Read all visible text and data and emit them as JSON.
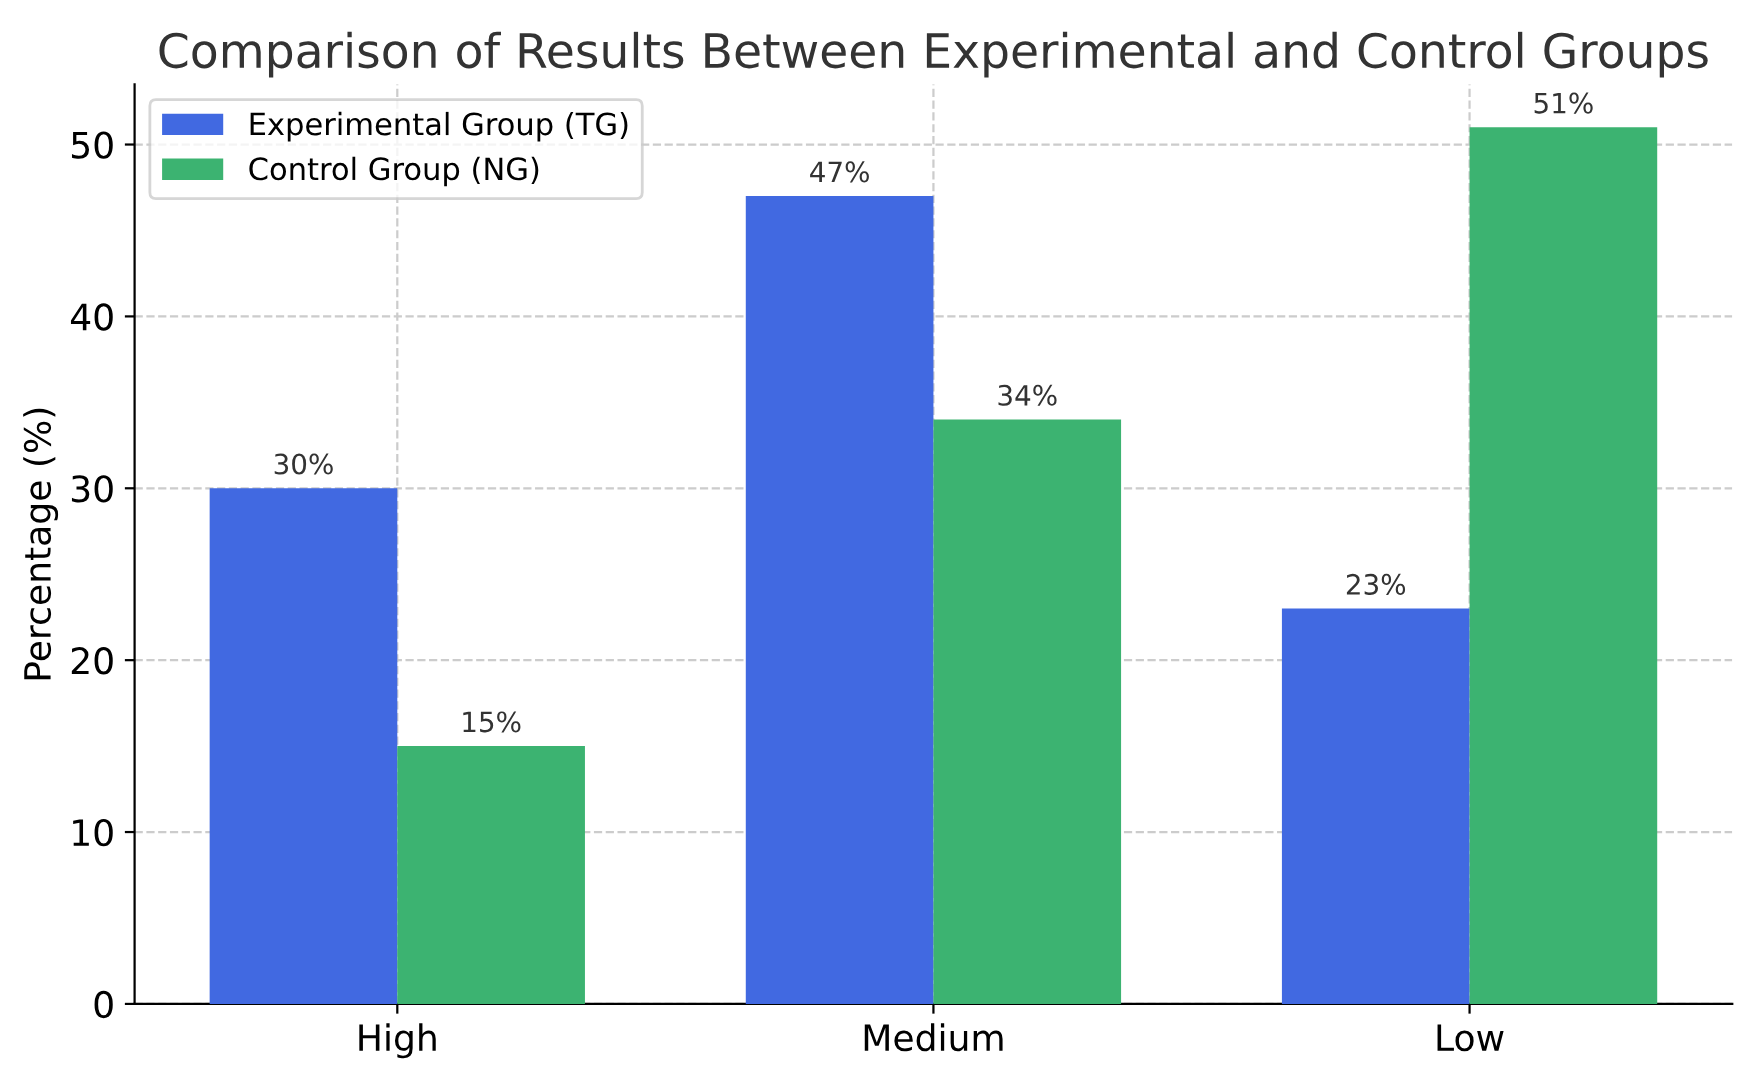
{
  "chart_data": {
    "type": "bar",
    "title": "Comparison of Results Between Experimental and Control Groups",
    "ylabel": "Percentage (%)",
    "categories": [
      "High",
      "Medium",
      "Low"
    ],
    "series": [
      {
        "name": "Experimental Group (TG)",
        "color": "#4169e1",
        "values": [
          30,
          47,
          23
        ],
        "value_labels": [
          "30%",
          "47%",
          "23%"
        ]
      },
      {
        "name": "Control Group (NG)",
        "color": "#3cb371",
        "values": [
          15,
          34,
          51
        ],
        "value_labels": [
          "15%",
          "34%",
          "51%"
        ]
      }
    ],
    "ylim": [
      0,
      53.5
    ],
    "yticks": [
      0,
      10,
      20,
      30,
      40,
      50
    ],
    "grid": true,
    "legend": "top left"
  }
}
